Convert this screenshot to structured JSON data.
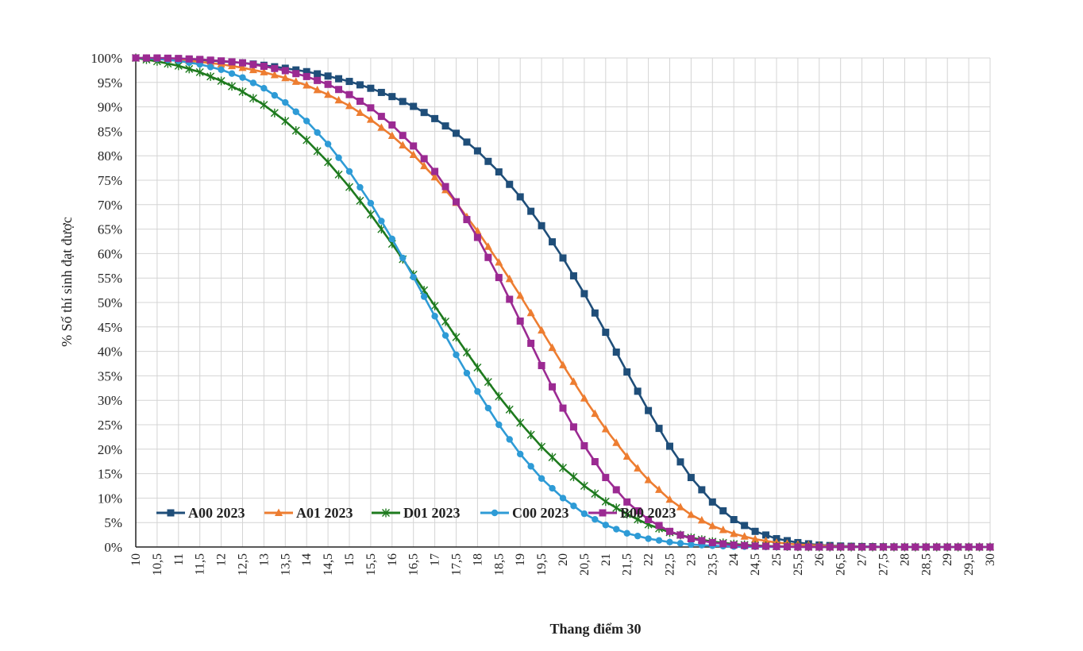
{
  "chart_data": {
    "type": "line",
    "title": "",
    "xlabel": "Thang điểm 30",
    "ylabel": "% Số thí sinh đạt được",
    "xlim": [
      10,
      30
    ],
    "ylim": [
      0,
      100
    ],
    "grid": true,
    "legend_position": "bottom-left",
    "x_ticks": [
      "10",
      "10,5",
      "11",
      "11,5",
      "12",
      "12,5",
      "13",
      "13,5",
      "14",
      "14,5",
      "15",
      "15,5",
      "16",
      "16,5",
      "17",
      "17,5",
      "18",
      "18,5",
      "19",
      "19,5",
      "20",
      "20,5",
      "21",
      "21,5",
      "22",
      "22,5",
      "23",
      "23,5",
      "24",
      "24,5",
      "25",
      "25,5",
      "26",
      "26,5",
      "27",
      "27,5",
      "28",
      "28,5",
      "29",
      "29,5",
      "30"
    ],
    "y_ticks": [
      "0%",
      "5%",
      "10%",
      "15%",
      "20%",
      "25%",
      "30%",
      "35%",
      "40%",
      "45%",
      "50%",
      "55%",
      "60%",
      "65%",
      "70%",
      "75%",
      "80%",
      "85%",
      "90%",
      "95%",
      "100%"
    ],
    "x": [
      10,
      10.5,
      11,
      11.5,
      12,
      12.5,
      13,
      13.5,
      14,
      14.5,
      15,
      15.5,
      16,
      16.5,
      17,
      17.5,
      18,
      18.5,
      19,
      19.5,
      20,
      20.5,
      21,
      21.5,
      22,
      22.5,
      23,
      23.5,
      24,
      24.5,
      25,
      25.5,
      26,
      26.5,
      27,
      27.5,
      28,
      28.5,
      29,
      29.5,
      30
    ],
    "series": [
      {
        "name": "A00 2023",
        "color": "#1f4e79",
        "marker": "square",
        "values": [
          100,
          99.9,
          99.8,
          99.6,
          99.3,
          99,
          98.5,
          97.9,
          97.2,
          96.3,
          95.2,
          93.8,
          92.1,
          90.1,
          87.6,
          84.6,
          81,
          76.7,
          71.6,
          65.7,
          59.1,
          51.8,
          43.9,
          35.8,
          27.9,
          20.6,
          14.2,
          9.2,
          5.6,
          3.2,
          1.7,
          0.9,
          0.4,
          0.2,
          0.1,
          0.05,
          0,
          0,
          0,
          0,
          0
        ]
      },
      {
        "name": "A01 2023",
        "color": "#ed7d31",
        "marker": "triangle",
        "values": [
          100,
          99.8,
          99.6,
          99.2,
          98.7,
          98,
          97.1,
          95.9,
          94.4,
          92.5,
          90.2,
          87.4,
          84.1,
          80.2,
          75.6,
          70.4,
          64.6,
          58.2,
          51.4,
          44.3,
          37.2,
          30.4,
          24.1,
          18.5,
          13.7,
          9.7,
          6.6,
          4.3,
          2.7,
          1.6,
          0.9,
          0.5,
          0.3,
          0.1,
          0.05,
          0,
          0,
          0,
          0,
          0,
          0
        ]
      },
      {
        "name": "D01 2023",
        "color": "#1e7a1e",
        "marker": "star",
        "values": [
          100,
          99.3,
          98.4,
          97.1,
          95.3,
          93.1,
          90.4,
          87.1,
          83.2,
          78.7,
          73.6,
          68,
          62,
          55.7,
          49.3,
          42.9,
          36.7,
          30.8,
          25.4,
          20.5,
          16.2,
          12.5,
          9.3,
          6.7,
          4.6,
          3,
          1.9,
          1.1,
          0.6,
          0.3,
          0.15,
          0.05,
          0,
          0,
          0,
          0,
          0,
          0,
          0,
          0,
          0
        ]
      },
      {
        "name": "C00 2023",
        "color": "#2e9bd6",
        "marker": "circle",
        "values": [
          100,
          99.8,
          99.4,
          98.7,
          97.6,
          96,
          93.8,
          90.9,
          87.1,
          82.4,
          76.8,
          70.3,
          63,
          55.2,
          47.2,
          39.3,
          31.8,
          25,
          19,
          14,
          10,
          6.8,
          4.5,
          2.8,
          1.7,
          1,
          0.5,
          0.25,
          0.1,
          0.05,
          0,
          0,
          0,
          0,
          0,
          0,
          0,
          0,
          0,
          0,
          0
        ]
      },
      {
        "name": "B00 2023",
        "color": "#9b2a92",
        "marker": "square",
        "values": [
          100,
          100,
          99.9,
          99.7,
          99.4,
          99,
          98.3,
          97.4,
          96.2,
          94.6,
          92.5,
          89.8,
          86.3,
          82,
          76.8,
          70.6,
          63.3,
          55.1,
          46.2,
          37.1,
          28.4,
          20.7,
          14.2,
          9.2,
          5.6,
          3.2,
          1.7,
          0.9,
          0.4,
          0.2,
          0.1,
          0,
          0,
          0,
          0,
          0,
          0,
          0,
          0,
          0,
          0
        ]
      }
    ]
  }
}
